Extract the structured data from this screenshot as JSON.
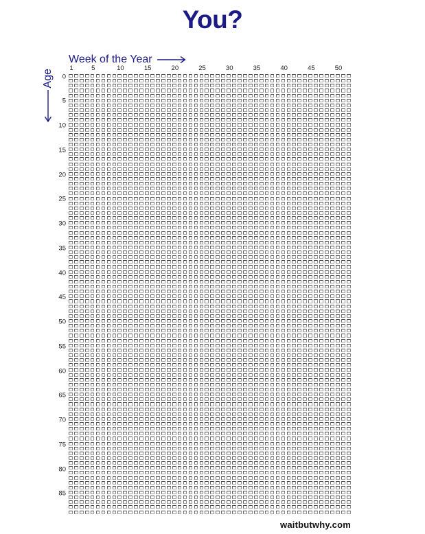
{
  "header": {
    "title": "You?"
  },
  "chart_data": {
    "type": "heatmap",
    "title": "You?",
    "xlabel": "Week of the Year",
    "ylabel": "Age",
    "columns": 52,
    "rows": 90,
    "x_range": [
      1,
      52
    ],
    "y_range": [
      0,
      89
    ],
    "x_ticks": [
      1,
      5,
      10,
      15,
      20,
      25,
      30,
      35,
      40,
      45,
      50
    ],
    "y_ticks": [
      0,
      5,
      10,
      15,
      20,
      25,
      30,
      35,
      40,
      45,
      50,
      55,
      60,
      65,
      70,
      75,
      80,
      85
    ],
    "cell_unit": "one week of life",
    "filled_cells": [],
    "all_cells_state": "empty",
    "legend": "none",
    "grid_lines": "off",
    "x_axis_arrow_direction": "right",
    "y_axis_arrow_direction": "down"
  },
  "footer": {
    "watermark": "waitbutwhy.com"
  },
  "colors": {
    "accent_navy": "#1c1a85",
    "square_border": "#7a7a7a",
    "tick_text": "#1a1a1a",
    "watermark_text": "#101010",
    "background": "#ffffff"
  }
}
